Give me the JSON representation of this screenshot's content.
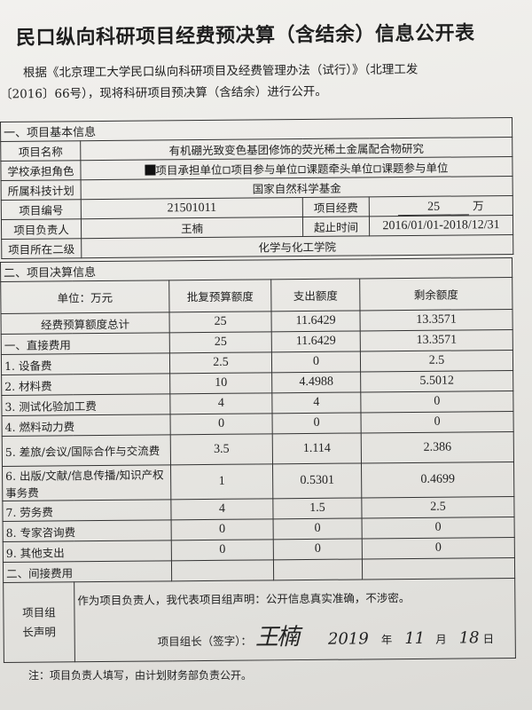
{
  "title": "民口纵向科研项目经费预决算（含结余）信息公开表",
  "intro": {
    "line1": "根据《北京理工大学民口纵向科研项目及经费管理办法（试行）》（北理工发",
    "line2": "〔2016〕66号），现将科研项目预决算（含结余）进行公开。"
  },
  "basic": {
    "section": "一、项目基本信息",
    "name_label": "项目名称",
    "name": "有机硼光致变色基团修饰的荧光稀土金属配合物研究",
    "role_label": "学校承担角色",
    "roles": [
      {
        "label": "项目承担单位",
        "checked": true
      },
      {
        "label": "项目参与单位",
        "checked": false
      },
      {
        "label": "课题牵头单位",
        "checked": false
      },
      {
        "label": "课题参与单位",
        "checked": false
      }
    ],
    "plan_label": "所属科技计划",
    "plan": "国家自然科学基金",
    "code_label": "项目编号",
    "code": "21501011",
    "fund_label": "项目经费",
    "fund": "25",
    "fund_unit": "万",
    "leader_label": "项目负责人",
    "leader": "王楠",
    "period_label": "起止时间",
    "period": "2016/01/01-2018/12/31",
    "dept_label": "项目所在二级",
    "dept": "化学与化工学院"
  },
  "settle": {
    "section": "二、项目决算信息",
    "headers": [
      "单位：万元",
      "批复预算额度",
      "支出额度",
      "剩余额度"
    ],
    "rows": [
      {
        "item": "经费预算额度总计",
        "budget": "25",
        "spent": "11.6429",
        "remain": "13.3571"
      },
      {
        "item": "一、直接费用",
        "budget": "25",
        "spent": "11.6429",
        "remain": "13.3571"
      },
      {
        "item": "1. 设备费",
        "budget": "2.5",
        "spent": "0",
        "remain": "2.5"
      },
      {
        "item": "2. 材料费",
        "budget": "10",
        "spent": "4.4988",
        "remain": "5.5012"
      },
      {
        "item": "3. 测试化验加工费",
        "budget": "4",
        "spent": "4",
        "remain": "0"
      },
      {
        "item": "4. 燃料动力费",
        "budget": "0",
        "spent": "0",
        "remain": "0"
      },
      {
        "item": "5. 差旅/会议/国际合作与交流费",
        "budget": "3.5",
        "spent": "1.114",
        "remain": "2.386"
      },
      {
        "item": "6. 出版/文献/信息传播/知识产权事务费",
        "budget": "1",
        "spent": "0.5301",
        "remain": "0.4699"
      },
      {
        "item": "7. 劳务费",
        "budget": "4",
        "spent": "1.5",
        "remain": "2.5"
      },
      {
        "item": "8. 专家咨询费",
        "budget": "0",
        "spent": "0",
        "remain": "0"
      },
      {
        "item": "9. 其他支出",
        "budget": "0",
        "spent": "0",
        "remain": "0"
      },
      {
        "item": "二、间接费用",
        "budget": "",
        "spent": "",
        "remain": ""
      }
    ]
  },
  "declaration": {
    "label": "项目组长声明",
    "text": "作为项目负责人，我代表项目组声明：公开信息真实准确，不涉密。",
    "sign_label": "项目组长（签字）：",
    "signature": "王楠",
    "year": "2019",
    "year_unit": "年",
    "month": "11",
    "month_unit": "月",
    "day": "18",
    "day_unit": "日"
  },
  "note": "注：项目负责人填写，由计划财务部负责公开。"
}
